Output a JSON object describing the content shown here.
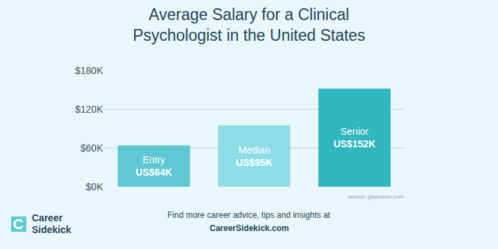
{
  "chart_data": {
    "type": "bar",
    "title": [
      "Average Salary for a Clinical",
      "Psychologist in the United States"
    ],
    "categories": [
      "Entry",
      "Median",
      "Senior"
    ],
    "values": [
      64,
      95,
      152
    ],
    "value_labels": [
      "US$64K",
      "US$95K",
      "US$152K"
    ],
    "colors": [
      "#5fc8d2",
      "#8ddde6",
      "#2fb6bf"
    ],
    "ylim": [
      0,
      180
    ],
    "yticks": [
      {
        "value": 0,
        "label": "$0K"
      },
      {
        "value": 60,
        "label": "$60K"
      },
      {
        "value": 120,
        "label": "$120K"
      },
      {
        "value": 180,
        "label": "$180K"
      }
    ],
    "grid": true,
    "data_labels": true,
    "tick_labels": "y",
    "source": "source: glassdoor.com",
    "footer": [
      "Find more career advice, tips and insights at",
      "CareerSidekick.com"
    ],
    "brand": [
      "Career",
      "Sidekick"
    ]
  }
}
